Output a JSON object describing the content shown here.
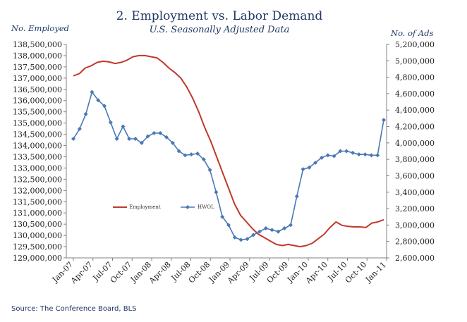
{
  "chart_data": {
    "type": "line",
    "title": "2. Employment vs. Labor Demand",
    "subtitle": "U.S. Seasonally Adjusted Data",
    "ylabel_left": "No. Employed",
    "ylabel_right": "No. of Ads",
    "source": "Source: The Conference Board, BLS",
    "x_tick_labels": [
      "Jan-07",
      "Apr-07",
      "Jul-07",
      "Oct-07",
      "Jan-08",
      "Apr-08",
      "Jul-08",
      "Oct-08",
      "Jan-09",
      "Apr-09",
      "Jul-09",
      "Oct-09",
      "Jan-10",
      "Apr-10",
      "Jul-10",
      "Oct-10",
      "Jan-11"
    ],
    "y_left": {
      "min": 129000000,
      "max": 138500000,
      "step": 500000,
      "tick_labels": [
        "129,000,000",
        "129,500,000",
        "130,000,000",
        "130,500,000",
        "131,000,000",
        "131,500,000",
        "132,000,000",
        "132,500,000",
        "133,000,000",
        "133,500,000",
        "134,000,000",
        "134,500,000",
        "135,000,000",
        "135,500,000",
        "136,000,000",
        "136,500,000",
        "137,000,000",
        "137,500,000",
        "138,000,000",
        "138,500,000"
      ]
    },
    "y_right": {
      "min": 2600000,
      "max": 5200000,
      "step": 200000,
      "tick_labels": [
        "2,600,000",
        "2,800,000",
        "3,000,000",
        "3,200,000",
        "3,400,000",
        "3,600,000",
        "3,800,000",
        "4,000,000",
        "4,200,000",
        "4,400,000",
        "4,600,000",
        "4,800,000",
        "5,000,000",
        "5,200,000"
      ]
    },
    "legend_position": "middle-left",
    "series": [
      {
        "name": "Employment",
        "axis": "left",
        "color": "#c0392b",
        "marker": "none",
        "values": [
          137100000,
          137200000,
          137450000,
          137550000,
          137700000,
          137750000,
          137720000,
          137650000,
          137700000,
          137800000,
          137950000,
          138000000,
          138000000,
          137950000,
          137900000,
          137700000,
          137450000,
          137250000,
          137000000,
          136600000,
          136100000,
          135500000,
          134800000,
          134200000,
          133500000,
          132800000,
          132100000,
          131400000,
          130900000,
          130600000,
          130300000,
          130050000,
          129900000,
          129750000,
          129600000,
          129550000,
          129600000,
          129550000,
          129500000,
          129550000,
          129650000,
          129850000,
          130050000,
          130350000,
          130600000,
          130450000,
          130400000,
          130380000,
          130380000,
          130350000,
          130550000,
          130600000,
          130700000
        ]
      },
      {
        "name": "HWOL",
        "axis": "right",
        "color": "#4a78b5",
        "marker": "diamond",
        "values": [
          4050000,
          4170000,
          4350000,
          4620000,
          4520000,
          4450000,
          4250000,
          4050000,
          4200000,
          4050000,
          4050000,
          4000000,
          4080000,
          4120000,
          4120000,
          4070000,
          4000000,
          3900000,
          3850000,
          3860000,
          3870000,
          3800000,
          3670000,
          3400000,
          3100000,
          3000000,
          2850000,
          2820000,
          2830000,
          2880000,
          2920000,
          2960000,
          2940000,
          2920000,
          2960000,
          3000000,
          3350000,
          3680000,
          3700000,
          3760000,
          3820000,
          3850000,
          3840000,
          3900000,
          3900000,
          3880000,
          3860000,
          3860000,
          3850000,
          3850000,
          4280000
        ]
      }
    ]
  }
}
